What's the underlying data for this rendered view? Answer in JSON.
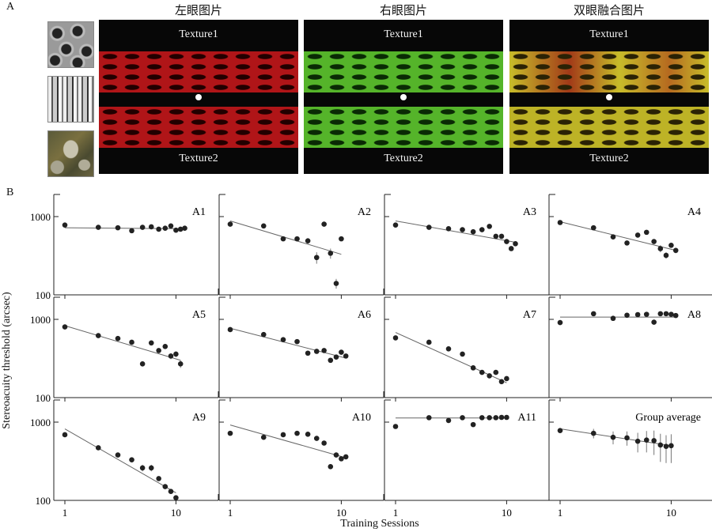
{
  "panel_labels": {
    "a": "A",
    "b": "B"
  },
  "stimulus": {
    "titles": [
      "左眼图片",
      "右眼图片",
      "双眼融合图片"
    ],
    "texture_top": "Texture1",
    "texture_bottom": "Texture2",
    "colors": {
      "left": "#c0181c",
      "right": "#5bbf2a",
      "fused": "#c8c02a"
    }
  },
  "axes": {
    "ylabel": "Stereoacuity threshold (arcsec)",
    "xlabel": "Training Sessions",
    "y_ticks": [
      "1000",
      "100"
    ],
    "x_ticks": [
      "1",
      "10"
    ]
  },
  "chart_data": [
    {
      "type": "scatter",
      "title": "A1",
      "x_scale": "log",
      "y_scale": "log",
      "xlim": [
        0.8,
        14
      ],
      "ylim": [
        100,
        1600
      ],
      "x": [
        1,
        2,
        3,
        4,
        5,
        6,
        7,
        8,
        9,
        10,
        11,
        12
      ],
      "y": [
        780,
        730,
        720,
        660,
        730,
        740,
        690,
        710,
        760,
        670,
        690,
        710
      ],
      "fit": [
        [
          1,
          720
        ],
        [
          12,
          700
        ]
      ]
    },
    {
      "type": "scatter",
      "title": "A2",
      "x_scale": "log",
      "y_scale": "log",
      "xlim": [
        0.8,
        14
      ],
      "ylim": [
        100,
        1600
      ],
      "x": [
        1,
        2,
        3,
        4,
        5,
        6,
        7,
        8,
        9,
        10
      ],
      "y": [
        800,
        760,
        520,
        520,
        490,
        300,
        800,
        340,
        140,
        520
      ],
      "err": [
        0,
        0,
        0,
        0,
        40,
        50,
        0,
        50,
        20,
        0
      ],
      "fit": [
        [
          1,
          880
        ],
        [
          10,
          330
        ]
      ]
    },
    {
      "type": "scatter",
      "title": "A3",
      "x_scale": "log",
      "y_scale": "log",
      "xlim": [
        0.8,
        14
      ],
      "ylim": [
        100,
        1600
      ],
      "x": [
        1,
        2,
        3,
        4,
        5,
        6,
        7,
        8,
        9,
        10,
        11,
        12
      ],
      "y": [
        780,
        730,
        700,
        680,
        640,
        680,
        750,
        560,
        560,
        480,
        390,
        450
      ],
      "fit": [
        [
          1,
          880
        ],
        [
          12,
          470
        ]
      ]
    },
    {
      "type": "scatter",
      "title": "A4",
      "x_scale": "log",
      "y_scale": "log",
      "xlim": [
        0.8,
        14
      ],
      "ylim": [
        100,
        1600
      ],
      "x": [
        1,
        2,
        3,
        4,
        5,
        6,
        7,
        8,
        9,
        10,
        11
      ],
      "y": [
        840,
        720,
        550,
        460,
        580,
        630,
        480,
        390,
        320,
        430,
        370
      ],
      "err": [
        0,
        0,
        0,
        0,
        0,
        0,
        0,
        40,
        30,
        0,
        30
      ],
      "fit": [
        [
          1,
          860
        ],
        [
          11,
          370
        ]
      ]
    },
    {
      "type": "scatter",
      "title": "A5",
      "x_scale": "log",
      "y_scale": "log",
      "xlim": [
        0.8,
        14
      ],
      "ylim": [
        100,
        1600
      ],
      "x": [
        1,
        2,
        3,
        4,
        5,
        6,
        7,
        8,
        9,
        10,
        11
      ],
      "y": [
        800,
        620,
        570,
        510,
        270,
        500,
        400,
        450,
        340,
        360,
        270
      ],
      "err": [
        0,
        0,
        0,
        0,
        20,
        0,
        0,
        0,
        30,
        30,
        30
      ],
      "fit": [
        [
          1,
          830
        ],
        [
          11,
          300
        ]
      ]
    },
    {
      "type": "scatter",
      "title": "A6",
      "x_scale": "log",
      "y_scale": "log",
      "xlim": [
        0.8,
        14
      ],
      "ylim": [
        100,
        1600
      ],
      "x": [
        1,
        2,
        3,
        4,
        5,
        6,
        7,
        8,
        9,
        10,
        11
      ],
      "y": [
        740,
        640,
        550,
        520,
        370,
        390,
        400,
        300,
        330,
        380,
        340
      ],
      "fit": [
        [
          1,
          770
        ],
        [
          11,
          320
        ]
      ]
    },
    {
      "type": "scatter",
      "title": "A7",
      "x_scale": "log",
      "y_scale": "log",
      "xlim": [
        0.8,
        14
      ],
      "ylim": [
        100,
        1600
      ],
      "x": [
        1,
        2,
        3,
        4,
        5,
        6,
        7,
        8,
        9,
        10
      ],
      "y": [
        580,
        510,
        420,
        360,
        240,
        210,
        190,
        210,
        160,
        175
      ],
      "fit": [
        [
          1,
          680
        ],
        [
          10,
          155
        ]
      ]
    },
    {
      "type": "scatter",
      "title": "A8",
      "x_scale": "log",
      "y_scale": "log",
      "xlim": [
        0.8,
        14
      ],
      "ylim": [
        100,
        1600
      ],
      "x": [
        1,
        2,
        3,
        4,
        5,
        6,
        7,
        8,
        9,
        10,
        11
      ],
      "y": [
        910,
        1180,
        1030,
        1130,
        1150,
        1160,
        920,
        1180,
        1180,
        1160,
        1120
      ],
      "fit": [
        [
          1,
          1070
        ],
        [
          11,
          1070
        ]
      ]
    },
    {
      "type": "scatter",
      "title": "A9",
      "x_scale": "log",
      "y_scale": "log",
      "xlim": [
        0.8,
        14
      ],
      "ylim": [
        100,
        1600
      ],
      "x": [
        1,
        2,
        3,
        4,
        5,
        6,
        7,
        8,
        9,
        10
      ],
      "y": [
        690,
        470,
        380,
        330,
        260,
        260,
        190,
        150,
        130,
        108
      ],
      "err": [
        0,
        0,
        0,
        0,
        25,
        25,
        0,
        0,
        0,
        0
      ],
      "fit": [
        [
          1,
          820
        ],
        [
          10,
          125
        ]
      ]
    },
    {
      "type": "scatter",
      "title": "A10",
      "x_scale": "log",
      "y_scale": "log",
      "xlim": [
        0.8,
        14
      ],
      "ylim": [
        100,
        1600
      ],
      "x": [
        1,
        2,
        3,
        4,
        5,
        6,
        7,
        8,
        9,
        10,
        11
      ],
      "y": [
        720,
        640,
        690,
        720,
        700,
        620,
        540,
        270,
        380,
        340,
        360
      ],
      "fit": [
        [
          1,
          920
        ],
        [
          11,
          350
        ]
      ]
    },
    {
      "type": "scatter",
      "title": "A11",
      "x_scale": "log",
      "y_scale": "log",
      "xlim": [
        0.8,
        14
      ],
      "ylim": [
        100,
        1600
      ],
      "x": [
        1,
        2,
        3,
        4,
        5,
        6,
        7,
        8,
        9,
        10
      ],
      "y": [
        880,
        1140,
        1050,
        1140,
        930,
        1140,
        1140,
        1140,
        1150,
        1150
      ],
      "fit": [
        [
          1,
          1130
        ],
        [
          10,
          1130
        ]
      ]
    },
    {
      "type": "scatter",
      "title": "Group average",
      "x_scale": "log",
      "y_scale": "log",
      "xlim": [
        0.8,
        14
      ],
      "ylim": [
        100,
        1600
      ],
      "x": [
        1,
        2,
        3,
        4,
        5,
        6,
        7,
        8,
        9,
        10
      ],
      "y": [
        780,
        720,
        640,
        630,
        570,
        590,
        580,
        510,
        490,
        500
      ],
      "err": [
        40,
        100,
        120,
        130,
        160,
        180,
        200,
        200,
        190,
        200
      ],
      "fit": [
        [
          1,
          820
        ],
        [
          10,
          500
        ]
      ]
    }
  ]
}
